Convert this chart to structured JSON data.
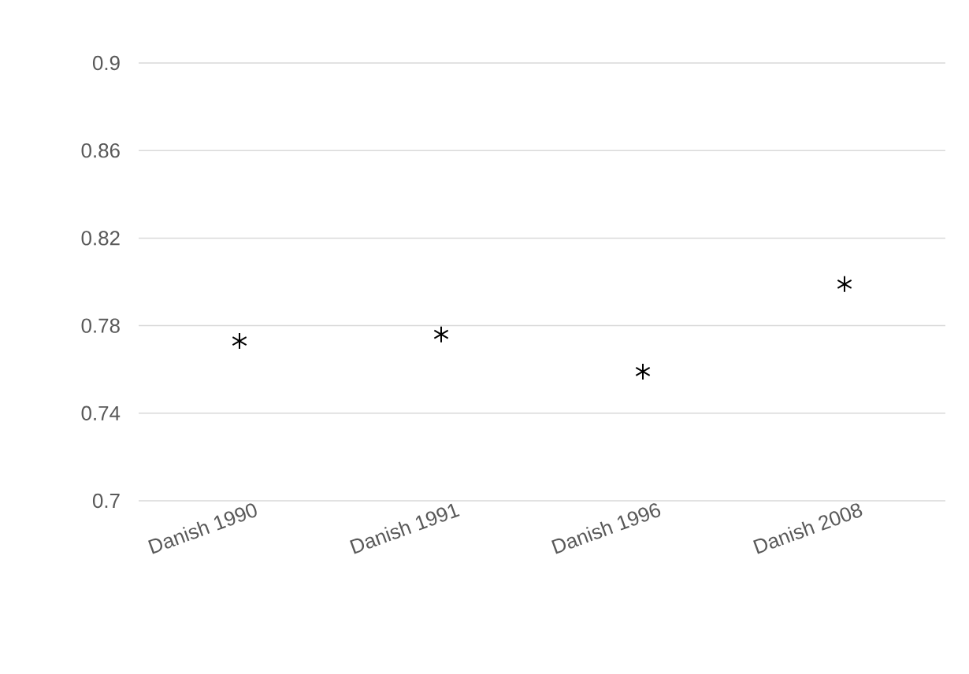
{
  "chart_data": {
    "type": "scatter",
    "categories": [
      "Danish 1990",
      "Danish 1991",
      "Danish 1996",
      "Danish 2008"
    ],
    "values": [
      0.773,
      0.776,
      0.759,
      0.799
    ],
    "color": "#000000",
    "marker": "cross",
    "ylim": [
      0.7,
      0.9
    ],
    "yticks": [
      0.7,
      0.74,
      0.78,
      0.82,
      0.86,
      0.9
    ],
    "grid": "y"
  }
}
